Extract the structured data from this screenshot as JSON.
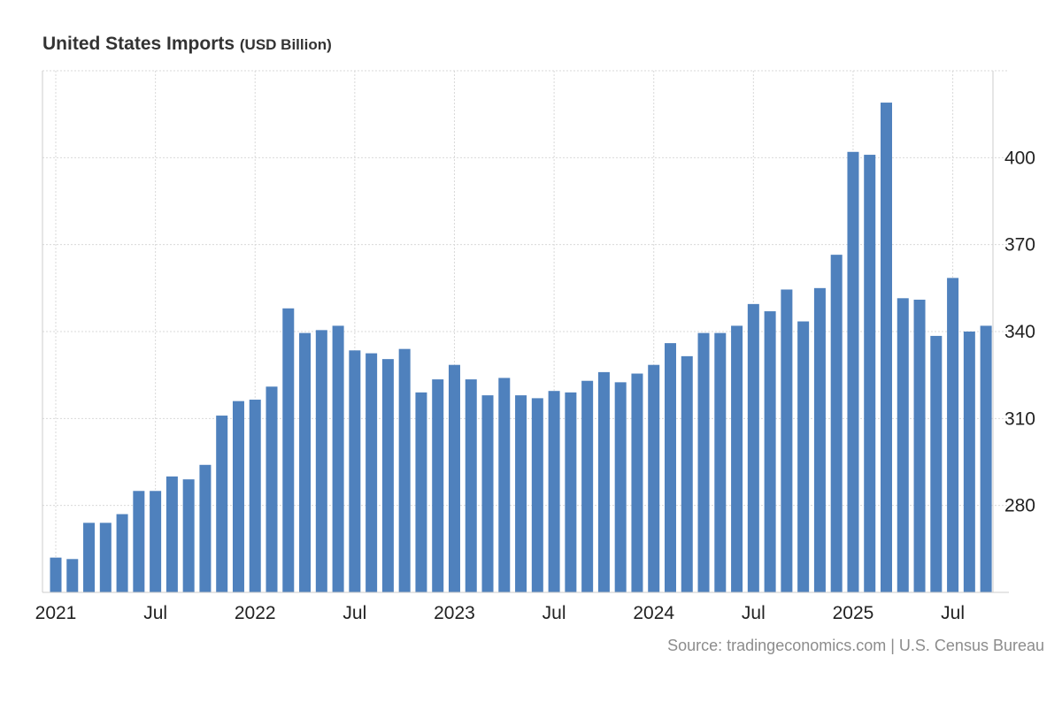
{
  "chart_data": {
    "type": "bar",
    "title": "United States Imports",
    "unit": "(USD Billion)",
    "source": "Source: tradingeconomics.com | U.S. Census Bureau",
    "bar_color": "#4f81bd",
    "grid_color": "#d9d9d9",
    "axis_color": "#cccccc",
    "xlabel": "",
    "ylabel": "",
    "ylim": [
      250,
      430
    ],
    "yticks": [
      280,
      310,
      340,
      370,
      400
    ],
    "x_tick_labels": [
      {
        "index": 0,
        "label": "2021"
      },
      {
        "index": 6,
        "label": "Jul"
      },
      {
        "index": 12,
        "label": "2022"
      },
      {
        "index": 18,
        "label": "Jul"
      },
      {
        "index": 24,
        "label": "2023"
      },
      {
        "index": 30,
        "label": "Jul"
      },
      {
        "index": 36,
        "label": "2024"
      },
      {
        "index": 42,
        "label": "Jul"
      },
      {
        "index": 48,
        "label": "2025"
      },
      {
        "index": 54,
        "label": "Jul"
      }
    ],
    "categories": [
      "Jan 2021",
      "Feb 2021",
      "Mar 2021",
      "Apr 2021",
      "May 2021",
      "Jun 2021",
      "Jul 2021",
      "Aug 2021",
      "Sep 2021",
      "Oct 2021",
      "Nov 2021",
      "Dec 2021",
      "Jan 2022",
      "Feb 2022",
      "Mar 2022",
      "Apr 2022",
      "May 2022",
      "Jun 2022",
      "Jul 2022",
      "Aug 2022",
      "Sep 2022",
      "Oct 2022",
      "Nov 2022",
      "Dec 2022",
      "Jan 2023",
      "Feb 2023",
      "Mar 2023",
      "Apr 2023",
      "May 2023",
      "Jun 2023",
      "Jul 2023",
      "Aug 2023",
      "Sep 2023",
      "Oct 2023",
      "Nov 2023",
      "Dec 2023",
      "Jan 2024",
      "Feb 2024",
      "Mar 2024",
      "Apr 2024",
      "May 2024",
      "Jun 2024",
      "Jul 2024",
      "Aug 2024",
      "Sep 2024",
      "Oct 2024",
      "Nov 2024",
      "Dec 2024",
      "Jan 2025",
      "Feb 2025",
      "Mar 2025",
      "Apr 2025",
      "May 2025",
      "Jun 2025",
      "Jul 2025",
      "Aug 2025",
      "Sep 2025"
    ],
    "values": [
      262,
      261.5,
      274,
      274,
      277,
      285,
      285,
      290,
      289,
      294,
      311,
      316,
      316.5,
      321,
      348,
      339.5,
      340.5,
      342,
      333.5,
      332.5,
      330.5,
      334,
      319,
      323.5,
      328.5,
      323.5,
      318,
      324,
      318,
      317,
      319.5,
      319,
      323,
      326,
      322.5,
      325.5,
      328.5,
      336,
      331.5,
      339.5,
      339.5,
      342,
      349.5,
      347,
      354.5,
      343.5,
      355,
      366.5,
      402,
      401,
      419,
      351.5,
      351,
      338.5,
      358.5,
      340,
      342
    ]
  }
}
